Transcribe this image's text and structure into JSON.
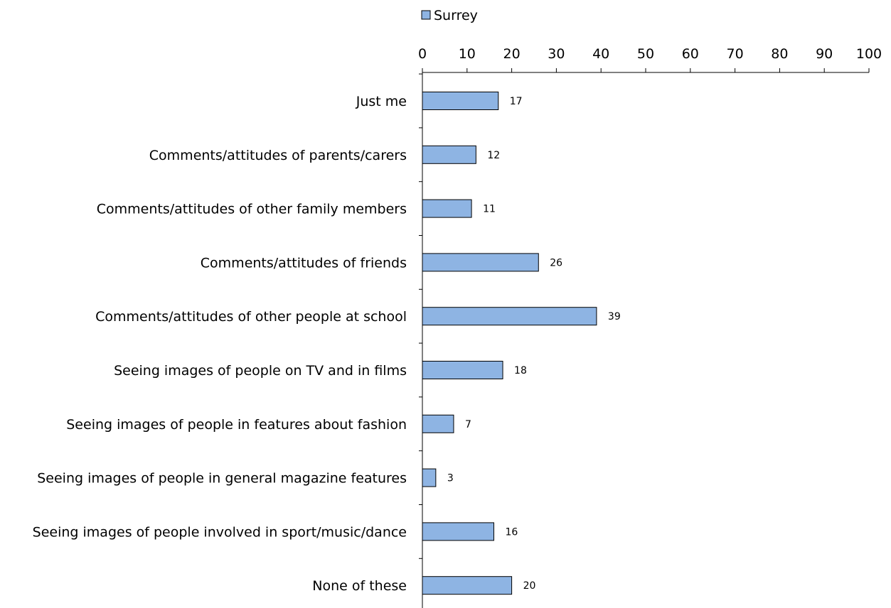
{
  "chart_data": {
    "type": "bar",
    "orientation": "horizontal",
    "categories": [
      "Just me",
      "Comments/attitudes of parents/carers",
      "Comments/attitudes of other family members",
      "Comments/attitudes of friends",
      "Comments/attitudes of other people at school",
      "Seeing images of people on TV and in films",
      "Seeing images of people in features about fashion",
      "Seeing images of people in general magazine features",
      "Seeing images of people involved in sport/music/dance",
      "None of these"
    ],
    "series": [
      {
        "name": "Surrey",
        "values": [
          17,
          12,
          11,
          26,
          39,
          18,
          7,
          3,
          16,
          20
        ],
        "color": "#8eb4e3"
      }
    ],
    "data_labels": [
      "17",
      "12",
      "11",
      "26",
      "39",
      "18",
      "7",
      "3",
      "16",
      "20"
    ],
    "xlim": [
      0,
      100
    ],
    "x_ticks": [
      "0",
      "10",
      "20",
      "30",
      "40",
      "50",
      "60",
      "70",
      "80",
      "90",
      "100"
    ],
    "x_axis_position": "top",
    "legend": {
      "position": "top",
      "label": "Surrey"
    },
    "grid": false
  }
}
